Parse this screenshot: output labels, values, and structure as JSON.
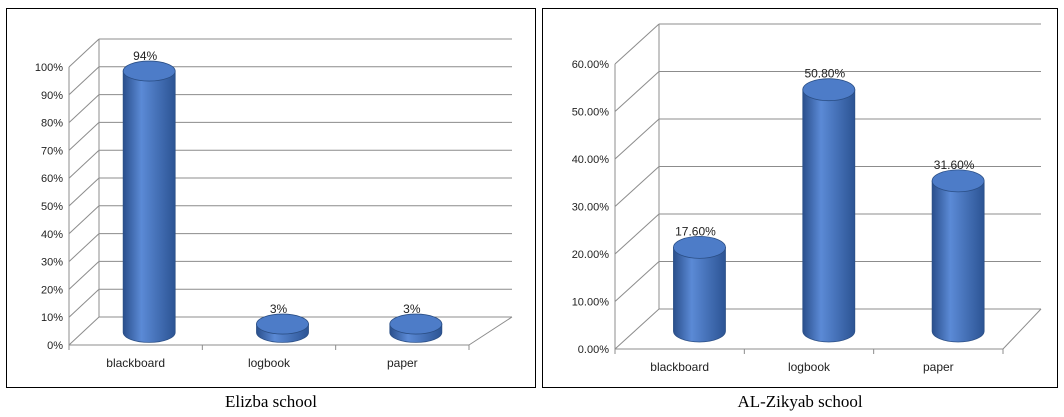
{
  "chart_data": [
    {
      "type": "bar",
      "style": "3d-cylinder",
      "caption": "Elizba school",
      "categories": [
        "blackboard",
        "logbook",
        "paper"
      ],
      "values": [
        94,
        3,
        3
      ],
      "value_labels": [
        "94%",
        "3%",
        "3%"
      ],
      "yticks": [
        "0%",
        "10%",
        "20%",
        "30%",
        "40%",
        "50%",
        "60%",
        "70%",
        "80%",
        "90%",
        "100%"
      ],
      "ylim": [
        0,
        100
      ],
      "tick_step": 10,
      "grid": true,
      "legend": "none",
      "color": "#4472C4"
    },
    {
      "type": "bar",
      "style": "3d-cylinder",
      "caption": "AL-Zikyab school",
      "categories": [
        "blackboard",
        "logbook",
        "paper"
      ],
      "values": [
        17.6,
        50.8,
        31.6
      ],
      "value_labels": [
        "17.60%",
        "50.80%",
        "31.60%"
      ],
      "yticks": [
        "0.00%",
        "10.00%",
        "20.00%",
        "30.00%",
        "40.00%",
        "50.00%",
        "60.00%"
      ],
      "ylim": [
        0,
        60
      ],
      "tick_step": 10,
      "grid": true,
      "legend": "none",
      "color": "#4472C4"
    }
  ]
}
